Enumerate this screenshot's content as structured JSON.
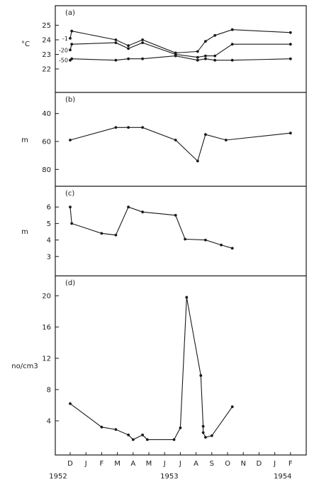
{
  "chart_data": {
    "type": "line",
    "x_ticks": [
      "D",
      "J",
      "F",
      "M",
      "A",
      "M",
      "J",
      "J",
      "A",
      "S",
      "O",
      "N",
      "D",
      "J",
      "F"
    ],
    "x_year_labels": [
      "1952",
      "1953",
      "1954"
    ],
    "panels": [
      {
        "id": "a",
        "label": "(a)",
        "ylabel": "°C",
        "ylim": [
          21,
          26
        ],
        "yticks": [
          22,
          23,
          24,
          25
        ],
        "series": [
          {
            "name": "-1",
            "points": [
              [
                0,
                24.1
              ],
              [
                0.1,
                24.6
              ],
              [
                2.9,
                24.0
              ],
              [
                3.7,
                23.6
              ],
              [
                4.6,
                24.0
              ],
              [
                6.7,
                23.1
              ],
              [
                8.1,
                23.2
              ],
              [
                8.6,
                23.9
              ],
              [
                9.2,
                24.3
              ],
              [
                10.3,
                24.7
              ],
              [
                14,
                24.5
              ]
            ]
          },
          {
            "name": "-20",
            "points": [
              [
                0,
                23.3
              ],
              [
                0.1,
                23.7
              ],
              [
                2.9,
                23.8
              ],
              [
                3.7,
                23.4
              ],
              [
                4.6,
                23.8
              ],
              [
                6.7,
                23.0
              ],
              [
                8.1,
                22.8
              ],
              [
                8.6,
                22.9
              ],
              [
                9.2,
                22.9
              ],
              [
                10.3,
                23.7
              ],
              [
                14,
                23.7
              ]
            ]
          },
          {
            "name": "-50",
            "points": [
              [
                0,
                22.6
              ],
              [
                0.1,
                22.7
              ],
              [
                2.9,
                22.6
              ],
              [
                3.7,
                22.7
              ],
              [
                4.6,
                22.7
              ],
              [
                6.7,
                22.9
              ],
              [
                8.1,
                22.6
              ],
              [
                8.6,
                22.7
              ],
              [
                9.2,
                22.6
              ],
              [
                10.3,
                22.6
              ],
              [
                14,
                22.7
              ]
            ]
          }
        ]
      },
      {
        "id": "b",
        "label": "(b)",
        "ylabel": "m",
        "ylim": [
          30,
          90
        ],
        "inverted": true,
        "yticks": [
          40,
          60,
          80
        ],
        "series": [
          {
            "name": "",
            "points": [
              [
                0,
                59
              ],
              [
                2.9,
                50
              ],
              [
                3.7,
                50
              ],
              [
                4.6,
                50
              ],
              [
                6.7,
                59
              ],
              [
                8.1,
                74
              ],
              [
                8.6,
                55
              ],
              [
                9.9,
                59
              ],
              [
                14,
                54
              ]
            ]
          }
        ]
      },
      {
        "id": "c",
        "label": "(c)",
        "ylabel": "m",
        "ylim": [
          2,
          7
        ],
        "yticks": [
          3,
          4,
          5,
          6
        ],
        "series": [
          {
            "name": "",
            "points": [
              [
                0,
                6.0
              ],
              [
                0.1,
                5.0
              ],
              [
                2,
                4.4
              ],
              [
                2.9,
                4.3
              ],
              [
                3.7,
                6.0
              ],
              [
                4.6,
                5.7
              ],
              [
                6.7,
                5.5
              ],
              [
                7.3,
                4.05
              ],
              [
                8.6,
                4.0
              ],
              [
                9.6,
                3.7
              ],
              [
                10.3,
                3.5
              ]
            ]
          }
        ]
      },
      {
        "id": "d",
        "label": "(d)",
        "ylabel": "no/cm3",
        "ylim": [
          0,
          22
        ],
        "yticks": [
          4,
          8,
          12,
          16,
          20
        ],
        "series": [
          {
            "name": "",
            "points": [
              [
                0,
                6.2
              ],
              [
                2,
                3.2
              ],
              [
                2.9,
                2.9
              ],
              [
                3.7,
                2.2
              ],
              [
                4,
                1.6
              ],
              [
                4.6,
                2.2
              ],
              [
                4.9,
                1.6
              ],
              [
                6.6,
                1.6
              ],
              [
                7,
                3.1
              ],
              [
                7.4,
                19.8
              ],
              [
                8.3,
                9.8
              ],
              [
                8.45,
                3.3
              ],
              [
                8.45,
                2.5
              ],
              [
                8.6,
                1.9
              ],
              [
                9,
                2.1
              ],
              [
                10.3,
                5.8
              ]
            ]
          }
        ]
      }
    ]
  }
}
